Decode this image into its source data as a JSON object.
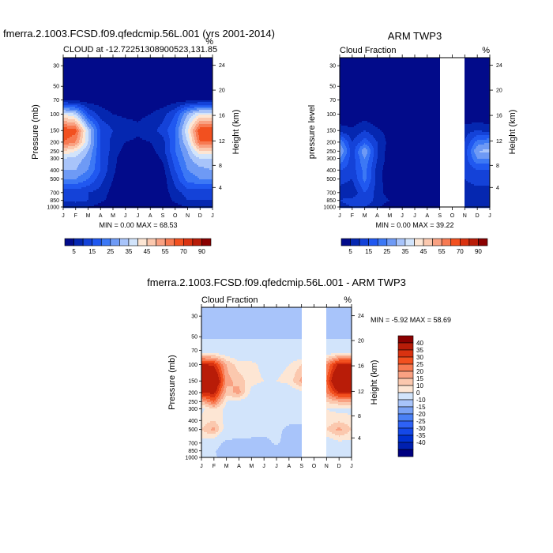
{
  "chart_data": [
    {
      "type": "heatmap",
      "title": "fmerra.2.1003.FCSD.f09.qfedcmip.56L.001 (yrs 2001-2014)",
      "subtitle_left": "CLOUD at -12.72251308900523,131.85",
      "subtitle_right": "%",
      "ylabel": "Pressure (mb)",
      "ylabel_right": "Height (km)",
      "min_max": "MIN =   0.00 MAX =  68.53",
      "x_ticks": [
        "J",
        "F",
        "M",
        "A",
        "M",
        "J",
        "J",
        "A",
        "S",
        "O",
        "N",
        "D",
        "J"
      ],
      "p_levels": [
        30,
        50,
        70,
        100,
        150,
        200,
        250,
        300,
        400,
        500,
        700,
        850,
        1000
      ],
      "height_ticks": [
        24,
        20,
        16,
        12,
        8,
        4
      ],
      "height_tick_pressures": [
        29.7,
        55,
        103,
        194,
        356,
        616
      ],
      "values": [
        [
          0,
          0,
          0,
          0,
          0,
          0,
          0,
          0,
          0,
          0,
          0,
          0,
          0
        ],
        [
          0,
          0,
          0,
          0,
          0,
          0,
          0,
          0,
          0,
          0,
          0,
          0,
          0
        ],
        [
          3,
          3,
          2,
          2,
          1,
          1,
          1,
          1,
          1,
          2,
          3,
          3,
          3
        ],
        [
          40,
          35,
          15,
          8,
          5,
          4,
          4,
          5,
          8,
          15,
          30,
          40,
          40
        ],
        [
          65,
          62,
          35,
          15,
          10,
          8,
          6,
          8,
          12,
          20,
          40,
          65,
          65
        ],
        [
          60,
          55,
          35,
          15,
          8,
          5,
          4,
          5,
          8,
          20,
          35,
          60,
          60
        ],
        [
          45,
          40,
          30,
          15,
          8,
          3,
          2,
          3,
          8,
          20,
          30,
          45,
          45
        ],
        [
          35,
          33,
          28,
          15,
          7,
          1,
          1,
          1,
          6,
          18,
          28,
          35,
          35
        ],
        [
          30,
          30,
          25,
          15,
          6,
          1,
          0,
          0,
          3,
          15,
          25,
          28,
          30
        ],
        [
          25,
          25,
          20,
          12,
          5,
          1,
          0,
          0,
          2,
          12,
          22,
          25,
          25
        ],
        [
          12,
          12,
          10,
          8,
          3,
          1,
          0,
          0,
          2,
          8,
          12,
          12,
          12
        ],
        [
          10,
          12,
          10,
          6,
          3,
          1,
          0,
          0,
          2,
          6,
          10,
          10,
          10
        ],
        [
          5,
          5,
          5,
          3,
          2,
          0,
          0,
          0,
          1,
          3,
          5,
          5,
          5
        ]
      ],
      "colorbar": {
        "levels": [
          5,
          10,
          15,
          20,
          25,
          30,
          35,
          40,
          45,
          50,
          55,
          60,
          70,
          80,
          90
        ],
        "labels": [
          "5",
          "15",
          "25",
          "35",
          "45",
          "55",
          "70",
          "90"
        ],
        "colors": [
          "#020b8a",
          "#0527b0",
          "#1442d8",
          "#2058f0",
          "#3c78f5",
          "#6e9af5",
          "#a8c4fa",
          "#d2e4fb",
          "#fde6d4",
          "#fbc8ae",
          "#f9a182",
          "#f77a52",
          "#f2501f",
          "#d93210",
          "#b81c08",
          "#8a0000"
        ]
      }
    },
    {
      "type": "heatmap",
      "title": "ARM TWP3",
      "subtitle_left": "Cloud Fraction",
      "subtitle_right": "%",
      "ylabel": "pressure level",
      "ylabel_right": "Height (km)",
      "min_max": "MIN =   0.00 MAX =  39.22",
      "x_ticks": [
        "J",
        "F",
        "M",
        "A",
        "M",
        "J",
        "J",
        "A",
        "S",
        "O",
        "N",
        "D",
        "J"
      ],
      "p_levels": [
        30,
        50,
        70,
        100,
        150,
        200,
        250,
        300,
        400,
        500,
        700,
        850,
        1000
      ],
      "height_ticks": [
        24,
        20,
        16,
        12,
        8,
        4
      ],
      "height_tick_pressures": [
        29.7,
        55,
        103,
        194,
        356,
        616
      ],
      "values": [
        [
          0,
          0,
          0,
          0,
          0,
          0,
          0,
          0,
          0,
          null,
          0,
          0,
          0
        ],
        [
          0,
          0,
          0,
          0,
          0,
          0,
          0,
          0,
          0,
          null,
          0,
          0,
          0
        ],
        [
          0,
          0,
          0,
          0,
          0,
          0,
          0,
          0,
          0,
          null,
          0,
          0,
          0
        ],
        [
          0,
          0,
          2,
          0,
          0,
          0,
          0,
          0,
          0,
          null,
          0,
          0,
          0
        ],
        [
          8,
          6,
          10,
          6,
          3,
          0,
          0,
          0,
          0,
          null,
          8,
          10,
          8
        ],
        [
          25,
          10,
          18,
          10,
          3,
          0,
          0,
          0,
          0,
          null,
          10,
          22,
          25
        ],
        [
          32,
          12,
          30,
          10,
          2,
          0,
          0,
          0,
          0,
          null,
          12,
          30,
          32
        ],
        [
          25,
          12,
          25,
          10,
          2,
          0,
          0,
          0,
          0,
          null,
          12,
          25,
          25
        ],
        [
          15,
          12,
          22,
          8,
          1,
          0,
          0,
          0,
          0,
          null,
          10,
          15,
          15
        ],
        [
          12,
          10,
          22,
          8,
          1,
          0,
          0,
          0,
          0,
          null,
          10,
          12,
          12
        ],
        [
          8,
          6,
          15,
          8,
          2,
          0,
          0,
          0,
          0,
          null,
          8,
          8,
          8
        ],
        [
          10,
          12,
          14,
          8,
          5,
          2,
          0,
          0,
          0,
          null,
          10,
          10,
          10
        ],
        [
          8,
          10,
          10,
          6,
          2,
          0,
          0,
          0,
          0,
          null,
          8,
          8,
          8
        ]
      ],
      "colorbar": {
        "levels": [
          5,
          10,
          15,
          20,
          25,
          30,
          35,
          40,
          45,
          50,
          55,
          60,
          70,
          80,
          90
        ],
        "labels": [
          "5",
          "15",
          "25",
          "35",
          "45",
          "55",
          "70",
          "90"
        ],
        "colors": [
          "#020b8a",
          "#0527b0",
          "#1442d8",
          "#2058f0",
          "#3c78f5",
          "#6e9af5",
          "#a8c4fa",
          "#d2e4fb",
          "#fde6d4",
          "#fbc8ae",
          "#f9a182",
          "#f77a52",
          "#f2501f",
          "#d93210",
          "#b81c08",
          "#8a0000"
        ]
      }
    },
    {
      "type": "heatmap",
      "title": "fmerra.2.1003.FCSD.f09.qfedcmip.56L.001 - ARM TWP3",
      "subtitle_left": "Cloud Fraction",
      "subtitle_right": "%",
      "ylabel": "Pressure (mb)",
      "ylabel_right": "Height (km)",
      "min_max": "MIN =  -5.92 MAX =  58.69",
      "x_ticks": [
        "J",
        "F",
        "M",
        "A",
        "M",
        "J",
        "J",
        "A",
        "S",
        "O",
        "N",
        "D",
        "J"
      ],
      "p_levels": [
        30,
        50,
        70,
        100,
        150,
        200,
        250,
        300,
        400,
        500,
        700,
        850,
        1000
      ],
      "height_ticks": [
        24,
        20,
        16,
        12,
        8,
        4
      ],
      "height_tick_pressures": [
        29.7,
        55,
        103,
        194,
        356,
        616
      ],
      "values": [
        [
          -3,
          -3,
          -3,
          -3,
          -3,
          -3,
          -3,
          -3,
          -3,
          null,
          -3,
          -3,
          -3
        ],
        [
          -0.5,
          -0.5,
          -0.5,
          -0.5,
          -0.5,
          -0.5,
          -0.5,
          -0.5,
          -0.5,
          null,
          -0.5,
          -0.5,
          -0.5
        ],
        [
          3,
          3,
          3,
          3,
          3,
          3,
          3,
          3,
          3,
          null,
          3,
          3,
          3
        ],
        [
          42,
          38,
          20,
          12,
          12,
          8,
          8,
          10,
          15,
          null,
          25,
          42,
          42
        ],
        [
          58,
          55,
          22,
          18,
          12,
          10,
          10,
          12,
          22,
          null,
          30,
          58,
          58
        ],
        [
          40,
          42,
          18,
          22,
          8,
          5,
          5,
          5,
          8,
          null,
          25,
          40,
          40
        ],
        [
          20,
          30,
          10,
          8,
          5,
          4,
          4,
          4,
          5,
          null,
          15,
          20,
          20
        ],
        [
          8,
          15,
          8,
          5,
          8,
          3,
          3,
          3,
          3,
          null,
          10,
          8,
          8
        ],
        [
          12,
          15,
          8,
          5,
          4,
          3,
          3,
          2,
          2,
          null,
          12,
          14,
          12
        ],
        [
          15,
          22,
          6,
          4,
          3,
          2,
          2,
          -2,
          -2,
          null,
          15,
          22,
          15
        ],
        [
          8,
          3,
          -2,
          -2,
          -2,
          -2,
          1,
          -3,
          -3,
          null,
          5,
          8,
          8
        ],
        [
          5,
          0.5,
          -3,
          -3,
          -3,
          -3,
          -3,
          -3,
          -3,
          null,
          5,
          5,
          5
        ],
        [
          3,
          1,
          -3,
          -3,
          -3,
          -3,
          -3,
          -3,
          -3,
          null,
          5,
          5,
          5
        ]
      ],
      "colorbar": {
        "levels": [
          -40,
          -35,
          -30,
          -25,
          -20,
          -15,
          -10,
          0,
          10,
          15,
          20,
          25,
          30,
          35,
          40
        ],
        "labels": [
          "40",
          "35",
          "30",
          "25",
          "20",
          "15",
          "10",
          "0",
          "-10",
          "-15",
          "-20",
          "-25",
          "-30",
          "-35",
          "-40"
        ],
        "colors": [
          "#000080",
          "#0020b0",
          "#0030d0",
          "#1448e8",
          "#2e62f5",
          "#4a80f5",
          "#7aa2f5",
          "#a8c4fa",
          "#d2e4fb",
          "#fde6d4",
          "#fbc8ae",
          "#f9a182",
          "#f77a52",
          "#f2501f",
          "#d93210",
          "#b81c08",
          "#8a0000"
        ]
      }
    }
  ]
}
